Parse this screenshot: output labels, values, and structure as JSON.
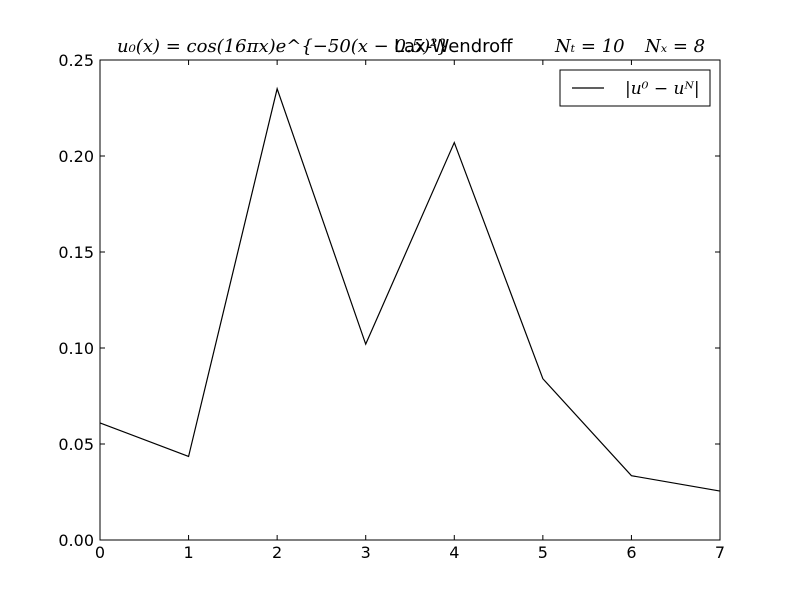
{
  "chart_data": {
    "type": "line",
    "title": {
      "formula": "u₀(x) = cos(16πx)e^{−50(x − 0.5)²}",
      "method": "Lax-Wendroff",
      "nt": "Nₜ = 10",
      "nx": "Nₓ = 8"
    },
    "xlabel": "",
    "ylabel": "",
    "xlim": [
      0,
      7
    ],
    "ylim": [
      0,
      0.25
    ],
    "x_ticks": [
      0,
      1,
      2,
      3,
      4,
      5,
      6,
      7
    ],
    "x_tick_labels": [
      "0",
      "1",
      "2",
      "3",
      "4",
      "5",
      "6",
      "7"
    ],
    "y_ticks": [
      0,
      0.05,
      0.1,
      0.15,
      0.2,
      0.25
    ],
    "y_tick_labels": [
      "0.00",
      "0.05",
      "0.10",
      "0.15",
      "0.20",
      "0.25"
    ],
    "grid": false,
    "legend_position": "top-right",
    "series": [
      {
        "name": "|u⁰ − uᴺ|",
        "color": "#000000",
        "x": [
          0,
          1,
          2,
          3,
          4,
          5,
          6,
          7
        ],
        "values": [
          0.061,
          0.0435,
          0.235,
          0.102,
          0.207,
          0.084,
          0.0335,
          0.0255
        ]
      }
    ]
  }
}
